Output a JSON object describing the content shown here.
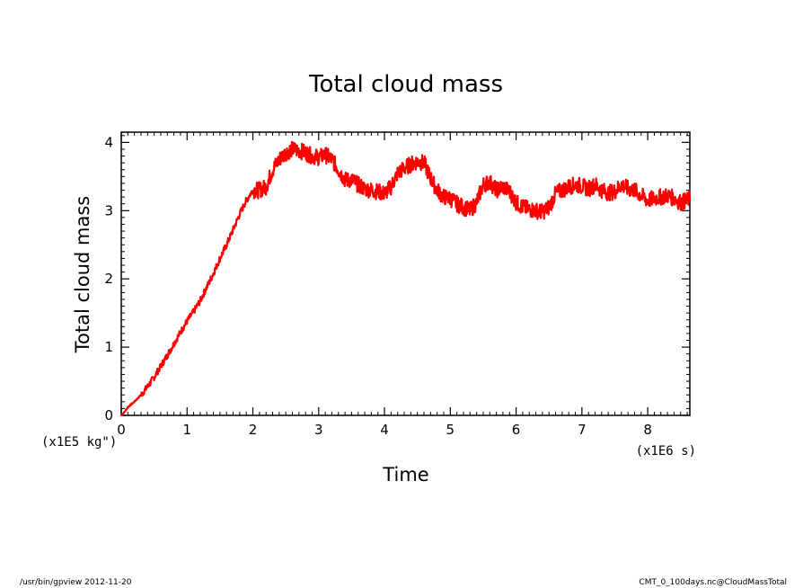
{
  "chart_data": {
    "type": "line",
    "title": "Total cloud mass",
    "xlabel": "Time",
    "ylabel": "Total cloud mass",
    "x_unit": "(x1E6 s)",
    "y_unit": "(x1E5 kg\")",
    "xlim": [
      0,
      8.64
    ],
    "ylim": [
      0,
      4.15
    ],
    "x_ticks": [
      "0",
      "1",
      "2",
      "3",
      "4",
      "5",
      "6",
      "7",
      "8"
    ],
    "y_ticks": [
      "0",
      "1",
      "2",
      "3",
      "4"
    ],
    "grid": false,
    "legend": "none",
    "series": [
      {
        "color": "#ff0000",
        "x": [
          0,
          0.05,
          0.1,
          0.2,
          0.3,
          0.4,
          0.5,
          0.6,
          0.7,
          0.8,
          0.9,
          1.0,
          1.1,
          1.2,
          1.3,
          1.4,
          1.5,
          1.6,
          1.7,
          1.8,
          1.9,
          2.0,
          2.1,
          2.2,
          2.3,
          2.4,
          2.5,
          2.6,
          2.7,
          2.8,
          2.9,
          3.0,
          3.1,
          3.2,
          3.3,
          3.4,
          3.5,
          3.6,
          3.7,
          3.8,
          3.9,
          4.0,
          4.1,
          4.2,
          4.3,
          4.4,
          4.5,
          4.6,
          4.7,
          4.8,
          4.9,
          5.0,
          5.1,
          5.2,
          5.3,
          5.4,
          5.5,
          5.6,
          5.7,
          5.8,
          5.9,
          6.0,
          6.1,
          6.2,
          6.3,
          6.4,
          6.5,
          6.6,
          6.7,
          6.8,
          6.9,
          7.0,
          7.1,
          7.2,
          7.3,
          7.4,
          7.5,
          7.6,
          7.7,
          7.8,
          7.9,
          8.0,
          8.1,
          8.2,
          8.3,
          8.4,
          8.5,
          8.6,
          8.64
        ],
        "y": [
          0.0,
          0.05,
          0.12,
          0.2,
          0.3,
          0.42,
          0.56,
          0.72,
          0.88,
          1.05,
          1.22,
          1.38,
          1.52,
          1.68,
          1.88,
          2.08,
          2.3,
          2.5,
          2.72,
          2.95,
          3.15,
          3.3,
          3.3,
          3.35,
          3.6,
          3.75,
          3.85,
          3.9,
          3.88,
          3.85,
          3.8,
          3.78,
          3.82,
          3.75,
          3.6,
          3.45,
          3.45,
          3.38,
          3.32,
          3.3,
          3.28,
          3.25,
          3.35,
          3.55,
          3.62,
          3.68,
          3.72,
          3.7,
          3.48,
          3.3,
          3.2,
          3.18,
          3.1,
          3.05,
          3.0,
          3.12,
          3.38,
          3.42,
          3.3,
          3.35,
          3.28,
          3.12,
          3.05,
          3.02,
          3.0,
          2.98,
          3.05,
          3.25,
          3.3,
          3.35,
          3.38,
          3.36,
          3.32,
          3.38,
          3.3,
          3.26,
          3.28,
          3.38,
          3.32,
          3.3,
          3.22,
          3.15,
          3.18,
          3.2,
          3.22,
          3.18,
          3.12,
          3.15,
          3.18
        ]
      }
    ]
  },
  "footer": {
    "left": "/usr/bin/gpview   2012-11-20",
    "right": "CMT_0_100days.nc@CloudMassTotal"
  }
}
